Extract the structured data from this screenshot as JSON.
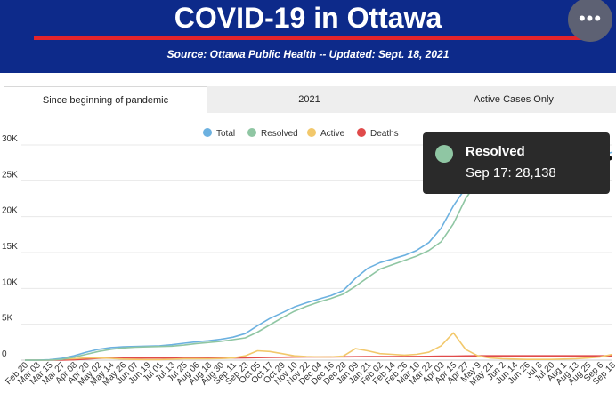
{
  "header": {
    "title": "COVID-19 in Ottawa",
    "subtitle": "Source:  Ottawa Public Health -- Updated:  Sept. 18, 2021",
    "more_icon": "more-horizontal-icon",
    "more_glyph": "•••",
    "bg_color": "#0d2a8a",
    "accent_color": "#e3242b"
  },
  "tabs": [
    {
      "label": "Since beginning of pandemic",
      "active": true
    },
    {
      "label": "2021",
      "active": false
    },
    {
      "label": "Active Cases Only",
      "active": false
    }
  ],
  "tooltip": {
    "series": "Resolved",
    "text": "Sep 17: 28,138"
  },
  "chart_data": {
    "type": "line",
    "legend_position": "top-center",
    "grid": true,
    "ylim": [
      0,
      30000
    ],
    "yticks": [
      "0",
      "5K",
      "10K",
      "15K",
      "20K",
      "25K",
      "30K"
    ],
    "x": [
      "Feb 20",
      "Mar 03",
      "Mar 15",
      "Mar 27",
      "Apr 08",
      "Apr 20",
      "May 02",
      "May 14",
      "May 26",
      "Jun 07",
      "Jun 19",
      "Jul 01",
      "Jul 13",
      "Jul 25",
      "Aug 06",
      "Aug 18",
      "Aug 30",
      "Sep 11",
      "Sep 23",
      "Oct 05",
      "Oct 17",
      "Oct 29",
      "Nov 10",
      "Nov 22",
      "Dec 04",
      "Dec 16",
      "Dec 28",
      "Jan 09",
      "Jan 21",
      "Feb 02",
      "Feb 14",
      "Feb 26",
      "Mar 10",
      "Mar 22",
      "Apr 03",
      "Apr 15",
      "Apr 27",
      "May 9",
      "May 21",
      "Jun 2",
      "Jun 14",
      "Jun 26",
      "Jul 8",
      "Jul 20",
      "Aug 1",
      "Aug 13",
      "Aug 25",
      "Sep 6",
      "Sep 18"
    ],
    "series": [
      {
        "name": "Total",
        "color": "#6cb1e0",
        "values": [
          0,
          5,
          50,
          250,
          600,
          1100,
          1500,
          1750,
          1850,
          1900,
          1950,
          2000,
          2150,
          2350,
          2550,
          2700,
          2900,
          3200,
          3700,
          4800,
          5800,
          6600,
          7400,
          8000,
          8500,
          9000,
          9700,
          11400,
          12800,
          13600,
          14100,
          14600,
          15300,
          16400,
          18400,
          21500,
          24000,
          25600,
          26600,
          27000,
          27250,
          27400,
          27550,
          27650,
          27800,
          28000,
          28250,
          28500,
          29000
        ]
      },
      {
        "name": "Resolved",
        "color": "#8fc6a3",
        "values": [
          0,
          0,
          10,
          100,
          400,
          800,
          1200,
          1500,
          1700,
          1800,
          1850,
          1900,
          1950,
          2100,
          2300,
          2450,
          2600,
          2850,
          3100,
          3900,
          4900,
          5900,
          6800,
          7500,
          8100,
          8600,
          9200,
          10300,
          11500,
          12700,
          13300,
          13900,
          14500,
          15300,
          16500,
          19000,
          22500,
          25000,
          26300,
          26800,
          27100,
          27300,
          27450,
          27550,
          27650,
          27800,
          27950,
          28050,
          28138
        ]
      },
      {
        "name": "Active",
        "color": "#f2c86b",
        "values": [
          0,
          5,
          40,
          150,
          200,
          300,
          300,
          250,
          150,
          100,
          80,
          70,
          120,
          200,
          200,
          180,
          220,
          300,
          600,
          1300,
          1200,
          900,
          600,
          500,
          450,
          450,
          550,
          1600,
          1300,
          900,
          800,
          700,
          800,
          1100,
          2000,
          3800,
          1500,
          600,
          300,
          200,
          150,
          100,
          100,
          100,
          150,
          200,
          300,
          450,
          800
        ]
      },
      {
        "name": "Deaths",
        "color": "#e04a4a",
        "values": [
          0,
          0,
          0,
          10,
          50,
          150,
          250,
          300,
          300,
          300,
          300,
          300,
          300,
          300,
          300,
          300,
          300,
          300,
          320,
          350,
          380,
          400,
          420,
          430,
          440,
          450,
          460,
          470,
          480,
          490,
          500,
          505,
          510,
          520,
          540,
          560,
          580,
          590,
          595,
          595,
          595,
          595,
          596,
          597,
          597,
          598,
          599,
          600,
          600
        ]
      }
    ]
  }
}
